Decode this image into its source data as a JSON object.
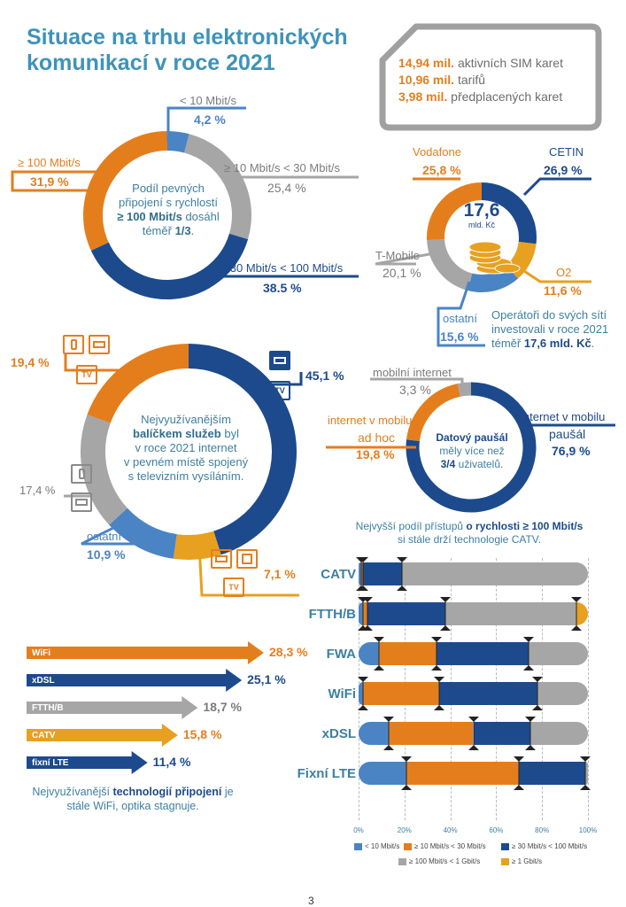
{
  "title": {
    "line1": "Situace na trhu elektronických",
    "line2": "komunikací v roce 2021"
  },
  "sim": {
    "items": [
      {
        "value": "14,94 mil.",
        "text": "aktivních SIM karet"
      },
      {
        "value": "10,96 mil.",
        "text": "tarifů"
      },
      {
        "value": "3,98 mil.",
        "text": "předplacených karet"
      }
    ]
  },
  "speed_donut": {
    "center": {
      "line1": "Podíl pevných",
      "line2": "připojení s rychlostí",
      "bold": "≥ 100 Mbit/s",
      "line3_rest": "dosáhl",
      "line4_pre": "téměř",
      "line4_bold": "1/3",
      "line4_post": "."
    },
    "labels": [
      {
        "label": "< 10 Mbit/s",
        "value": "4,2 %"
      },
      {
        "label": "≥ 10 Mbit/s < 30 Mbit/s",
        "value": "25,4 %"
      },
      {
        "label": "≥ 30 Mbit/s < 100 Mbit/s",
        "value": "38.5 %"
      },
      {
        "label": "≥ 100 Mbit/s",
        "value": "31,9 %"
      }
    ]
  },
  "invest_donut": {
    "center_value": "17,6",
    "center_unit": "mld. Kč",
    "labels": [
      {
        "label": "Vodafone",
        "value": "25,8 %"
      },
      {
        "label": "CETIN",
        "value": "26,9 %"
      },
      {
        "label": "T-Mobile",
        "value": "20,1 %"
      },
      {
        "label": "O2",
        "value": "11,6 %"
      },
      {
        "label": "ostatní",
        "value": "15,6 %"
      }
    ],
    "caption": {
      "line1": "Operátoři do svých sítí",
      "line2": "investovali v roce 2021",
      "line3_pre": "téměř",
      "line3_bold": "17,6 mld. Kč",
      "line3_post": "."
    }
  },
  "bundle_donut": {
    "center": {
      "line1": "Nejvyužívanějším",
      "bold": "balíčkem služeb",
      "line2_rest": "byl",
      "line3": "v roce 2021 internet",
      "line4": "v pevném místě spojený",
      "line5": "s televizním vysíláním."
    },
    "labels": [
      {
        "label": "",
        "value": "19,4 %"
      },
      {
        "label": "",
        "value": "45,1 %"
      },
      {
        "label": "",
        "value": "17,4 %"
      },
      {
        "label": "ostatní",
        "value": "10,9 %"
      },
      {
        "label": "",
        "value": "7,1 %"
      }
    ],
    "tv": "TV"
  },
  "mobile_donut": {
    "center": {
      "bold": "Datový paušál",
      "line2": "měly více než",
      "line3_bold": "3/4",
      "line3_rest": "uživatelů."
    },
    "labels": [
      {
        "label": "mobilní internet",
        "value": "3,3 %"
      },
      {
        "label1": "internet v mobilu",
        "label2": "ad hoc",
        "value": "19,8 %"
      },
      {
        "label1": "internet v mobilu",
        "label2": "paušál",
        "value": "76,9 %"
      }
    ]
  },
  "tech_bars": {
    "items": [
      {
        "name": "WiFi",
        "value": "28,3 %"
      },
      {
        "name": "xDSL",
        "value": "25,1 %"
      },
      {
        "name": "FTTH/B",
        "value": "18,7 %"
      },
      {
        "name": "CATV",
        "value": "15,8 %"
      },
      {
        "name": "fixní LTE",
        "value": "11,4 %"
      }
    ],
    "caption": {
      "line1_pre": "Nejvyužívanější",
      "line1_bold": "technologií připojení",
      "line1_post": "je",
      "line2": "stále WiFi, optika stagnuje."
    }
  },
  "chart_data": [
    {
      "type": "pie",
      "title": "",
      "categories": [
        "< 10 Mbit/s",
        "≥ 10 Mbit/s < 30 Mbit/s",
        "≥ 30 Mbit/s < 100 Mbit/s",
        "≥ 100 Mbit/s"
      ],
      "values": [
        4.2,
        25.4,
        38.5,
        31.9
      ],
      "colors": [
        "#4a84c4",
        "#a6a6a6",
        "#1d4a8c",
        "#e47e1d"
      ]
    },
    {
      "type": "pie",
      "title": "",
      "categories": [
        "CETIN",
        "O2",
        "ostatní",
        "T-Mobile",
        "Vodafone"
      ],
      "values": [
        26.9,
        11.6,
        15.6,
        20.1,
        25.8
      ],
      "colors": [
        "#1d4a8c",
        "#e8a020",
        "#4a84c4",
        "#a6a6a6",
        "#e47e1d"
      ]
    },
    {
      "type": "pie",
      "title": "",
      "categories": [
        "internet + TV",
        "internet + TV + voice",
        "ostatní",
        "internet + voice",
        "internet + TV + mobile"
      ],
      "values": [
        45.1,
        7.1,
        10.9,
        17.4,
        19.4
      ],
      "colors": [
        "#1d4a8c",
        "#e8a020",
        "#4a84c4",
        "#a6a6a6",
        "#e47e1d"
      ]
    },
    {
      "type": "pie",
      "title": "",
      "categories": [
        "internet v mobilu paušál",
        "internet v mobilu ad hoc",
        "mobilní internet"
      ],
      "values": [
        76.9,
        19.8,
        3.3
      ],
      "colors": [
        "#1d4a8c",
        "#e47e1d",
        "#a6a6a6"
      ]
    },
    {
      "type": "bar",
      "orientation": "horizontal",
      "title": "",
      "categories": [
        "WiFi",
        "xDSL",
        "FTTH/B",
        "CATV",
        "fixní LTE"
      ],
      "values": [
        28.3,
        25.1,
        18.7,
        15.8,
        11.4
      ],
      "colors": [
        "#e47e1d",
        "#1d4a8c",
        "#a6a6a6",
        "#e8a020",
        "#1d4a8c"
      ]
    },
    {
      "type": "bar",
      "stacked": true,
      "orientation": "horizontal",
      "title": "Nejvyšší podíl přístupů o rychlosti ≥ 100 Mbit/s si stále drží technologie CATV.",
      "title_pre": "Nejvyšší podíl přístupů",
      "title_bold": "o rychlosti ≥ 100 Mbit/s",
      "title_line2": "si stále drží technologie CATV.",
      "categories": [
        "CATV",
        "FTTH/B",
        "FWA",
        "WiFi",
        "xDSL",
        "Fixní LTE"
      ],
      "x_ticks": [
        "0%",
        "20%",
        "40%",
        "60%",
        "80%",
        "100%"
      ],
      "xlim": [
        0,
        100
      ],
      "series": [
        {
          "name": "< 10 Mbit/s",
          "color": "#4a84c4",
          "values": [
            1,
            2,
            9,
            2,
            13,
            21
          ]
        },
        {
          "name": "≥ 10 Mbit/s < 30 Mbit/s",
          "color": "#e47e1d",
          "values": [
            1,
            2,
            25,
            33,
            37,
            49
          ]
        },
        {
          "name": "≥ 30 Mbit/s < 100 Mbit/s",
          "color": "#1d4a8c",
          "values": [
            17,
            34,
            40,
            43,
            25,
            29
          ]
        },
        {
          "name": "≥ 100 Mbit/s < 1 Gbit/s",
          "color": "#a6a6a6",
          "values": [
            81,
            57,
            26,
            22,
            25,
            1
          ]
        },
        {
          "name": "≥ 1 Gbit/s",
          "color": "#e8a020",
          "values": [
            0,
            5,
            0,
            0,
            0,
            0
          ]
        }
      ]
    }
  ],
  "page_number": "3"
}
